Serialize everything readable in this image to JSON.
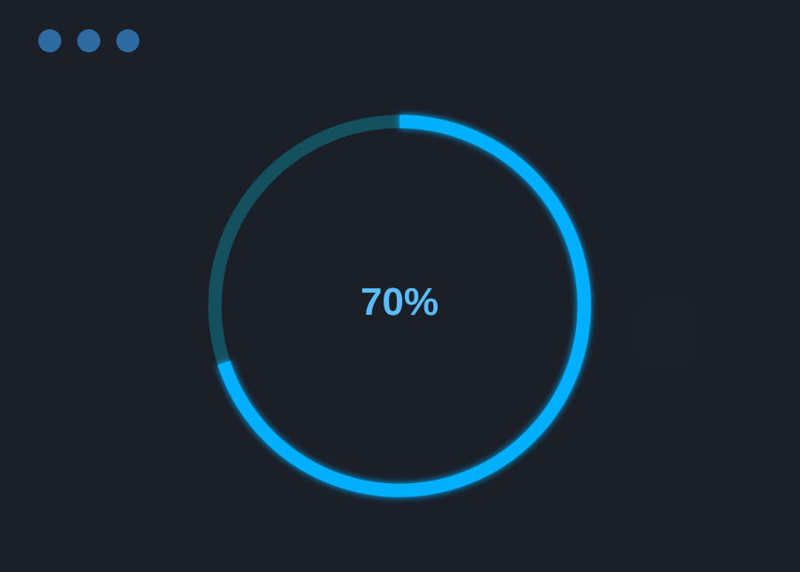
{
  "window": {
    "controls": [
      "dot",
      "dot",
      "dot"
    ],
    "control_color": "#2f6ba3"
  },
  "progress": {
    "value": 70,
    "label": "70%",
    "track_color": "#15505e",
    "fill_color": "#00b0ff",
    "text_color": "#5cbcf6"
  }
}
